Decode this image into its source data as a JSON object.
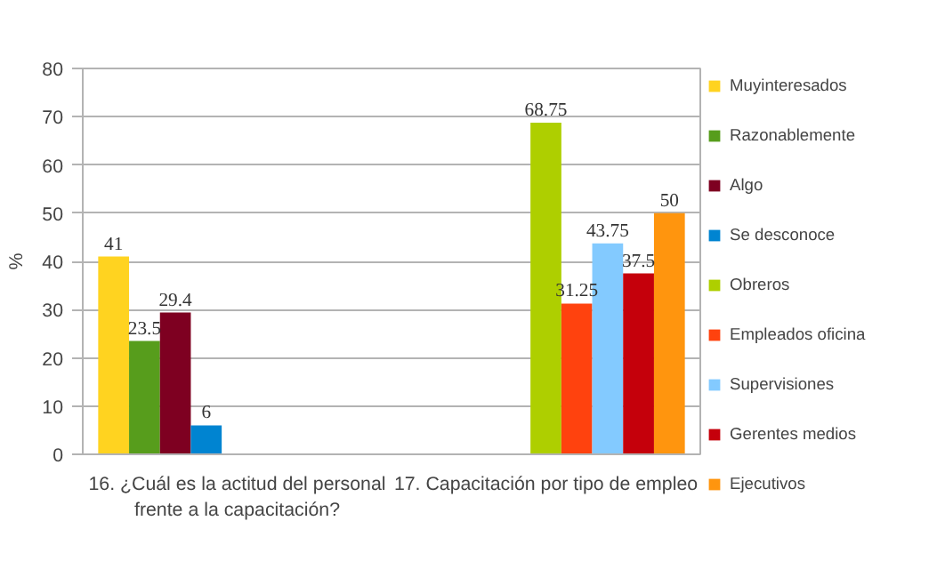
{
  "chart_data": {
    "type": "bar",
    "categories": [
      "16. ¿Cuál es la actitud del personal frente a la capacitación?",
      "17. Capacitación por tipo de empleo"
    ],
    "ylabel": "%",
    "ylim": [
      0,
      80
    ],
    "yticks": [
      0,
      10,
      20,
      30,
      40,
      50,
      60,
      70,
      80
    ],
    "grid": "y",
    "legend": "right",
    "data_labels": true,
    "series": [
      {
        "name": "Muyinteresados",
        "color": "#ffd320",
        "values": [
          41,
          null
        ]
      },
      {
        "name": "Razonablemente",
        "color": "#579d1c",
        "values": [
          23.5,
          null
        ]
      },
      {
        "name": "Algo",
        "color": "#7e0021",
        "values": [
          29.4,
          null
        ]
      },
      {
        "name": "Se desconoce",
        "color": "#0084d1",
        "values": [
          6,
          null
        ]
      },
      {
        "name": "Obreros",
        "color": "#aecf00",
        "values": [
          null,
          68.75
        ]
      },
      {
        "name": "Empleados oficina",
        "color": "#ff420e",
        "values": [
          null,
          31.25
        ]
      },
      {
        "name": "Supervisiones",
        "color": "#83caff",
        "values": [
          null,
          43.75
        ]
      },
      {
        "name": "Gerentes medios",
        "color": "#c5000b",
        "values": [
          null,
          37.5
        ]
      },
      {
        "name": "Ejecutivos",
        "color": "#ff950e",
        "values": [
          null,
          50
        ]
      }
    ]
  }
}
